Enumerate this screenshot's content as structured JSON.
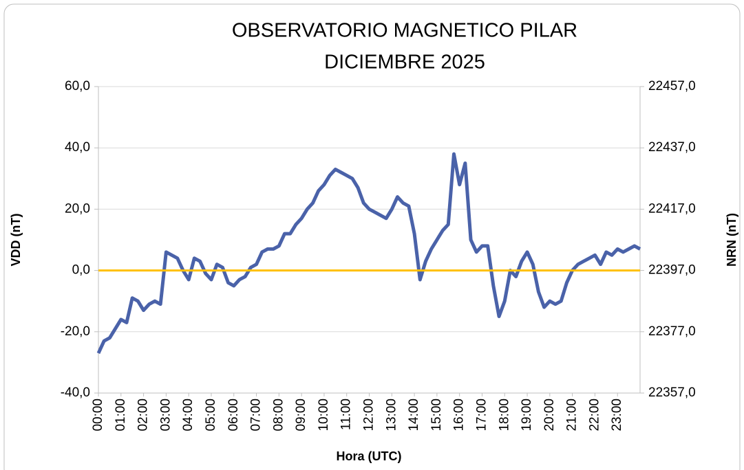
{
  "chart_data": {
    "type": "line",
    "title": "OBSERVATORIO MAGNETICO PILAR",
    "subtitle": "DICIEMBRE 2025",
    "x_label": "Hora (UTC)",
    "y_label": "VDD (nT)",
    "y2_label": "NRN (nT)",
    "x": [
      0,
      0.25,
      0.5,
      0.75,
      1,
      1.25,
      1.5,
      1.75,
      2,
      2.25,
      2.5,
      2.75,
      3,
      3.25,
      3.5,
      3.75,
      4,
      4.25,
      4.5,
      4.75,
      5,
      5.25,
      5.5,
      5.75,
      6,
      6.25,
      6.5,
      6.75,
      7,
      7.25,
      7.5,
      7.75,
      8,
      8.25,
      8.5,
      8.75,
      9,
      9.25,
      9.5,
      9.75,
      10,
      10.25,
      10.5,
      10.75,
      11,
      11.25,
      11.5,
      11.75,
      12,
      12.25,
      12.5,
      12.75,
      13,
      13.25,
      13.5,
      13.75,
      14,
      14.25,
      14.5,
      14.75,
      15,
      15.25,
      15.5,
      15.75,
      16,
      16.25,
      16.5,
      16.75,
      17,
      17.25,
      17.5,
      17.75,
      18,
      18.25,
      18.5,
      18.75,
      19,
      19.25,
      19.5,
      19.75,
      20,
      20.25,
      20.5,
      20.75,
      21,
      21.25,
      21.5,
      21.75,
      22,
      22.25,
      22.5,
      22.75,
      23,
      23.25,
      23.5,
      23.75,
      24
    ],
    "series": [
      {
        "color": "#4a62a9",
        "values": [
          -27,
          -23,
          -22,
          -19,
          -16,
          -17,
          -9,
          -10,
          -13,
          -11,
          -10,
          -11,
          6,
          5,
          4,
          0,
          -3,
          4,
          3,
          -1,
          -3,
          2,
          1,
          -4,
          -5,
          -3,
          -2,
          1,
          2,
          6,
          7,
          7,
          8,
          12,
          12,
          15,
          17,
          20,
          22,
          26,
          28,
          31,
          33,
          32,
          31,
          30,
          27,
          22,
          20,
          19,
          18,
          17,
          20,
          24,
          22,
          21,
          12,
          -3,
          3,
          7,
          10,
          13,
          15,
          38,
          28,
          35,
          10,
          6,
          8,
          8,
          -5,
          -15,
          -10,
          0,
          -2,
          3,
          6,
          2,
          -7,
          -12,
          -10,
          -11,
          -10,
          -4,
          0,
          2,
          3,
          4,
          5,
          2,
          6,
          5,
          7,
          6,
          7,
          8,
          7
        ]
      }
    ],
    "hline": {
      "value": 22397,
      "axis": "y2",
      "color": "#ffc000"
    },
    "xlim": [
      0,
      24
    ],
    "xticks": [
      {
        "value": 0,
        "label": "00:00"
      },
      {
        "value": 1,
        "label": "01:00"
      },
      {
        "value": 2,
        "label": "02:00"
      },
      {
        "value": 3,
        "label": "03:00"
      },
      {
        "value": 4,
        "label": "04:00"
      },
      {
        "value": 5,
        "label": "05:00"
      },
      {
        "value": 6,
        "label": "06:00"
      },
      {
        "value": 7,
        "label": "07:00"
      },
      {
        "value": 8,
        "label": "08:00"
      },
      {
        "value": 9,
        "label": "09:00"
      },
      {
        "value": 10,
        "label": "10:00"
      },
      {
        "value": 11,
        "label": "11:00"
      },
      {
        "value": 12,
        "label": "12:00"
      },
      {
        "value": 13,
        "label": "13:00"
      },
      {
        "value": 14,
        "label": "14:00"
      },
      {
        "value": 15,
        "label": "15:00"
      },
      {
        "value": 16,
        "label": "16:00"
      },
      {
        "value": 17,
        "label": "17:00"
      },
      {
        "value": 18,
        "label": "18:00"
      },
      {
        "value": 19,
        "label": "19:00"
      },
      {
        "value": 20,
        "label": "20:00"
      },
      {
        "value": 21,
        "label": "21:00"
      },
      {
        "value": 22,
        "label": "22:00"
      },
      {
        "value": 23,
        "label": "23:00"
      }
    ],
    "ylim": [
      -40,
      60
    ],
    "yticks": [
      {
        "value": -40,
        "label": "-40,0"
      },
      {
        "value": -20,
        "label": "-20,0"
      },
      {
        "value": 0,
        "label": "0,0"
      },
      {
        "value": 20,
        "label": "20,0"
      },
      {
        "value": 40,
        "label": "40,0"
      },
      {
        "value": 60,
        "label": "60,0"
      }
    ],
    "y2lim": [
      22357,
      22457
    ],
    "y2ticks": [
      {
        "value": 22357,
        "label": "22357,0"
      },
      {
        "value": 22377,
        "label": "22377,0"
      },
      {
        "value": 22397,
        "label": "22397,0"
      },
      {
        "value": 22417,
        "label": "22417,0"
      },
      {
        "value": 22437,
        "label": "22437,0"
      },
      {
        "value": 22457,
        "label": "22457,0"
      }
    ],
    "grid": true
  }
}
